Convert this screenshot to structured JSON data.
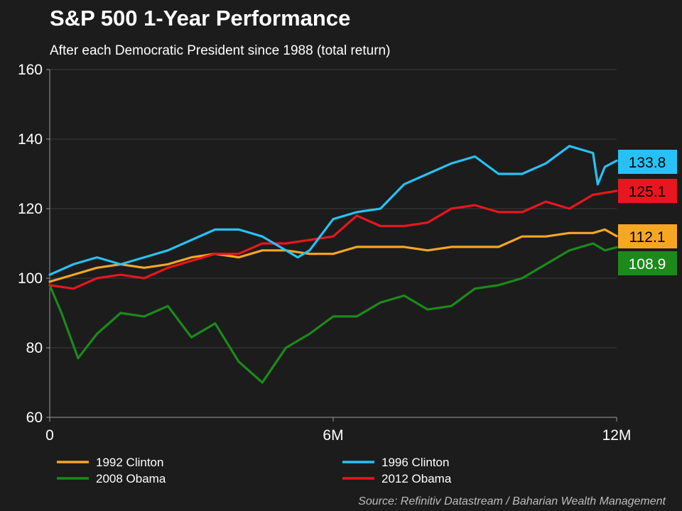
{
  "chart_data": {
    "type": "line",
    "title": "S&P 500 1-Year Performance",
    "subtitle": "After each Democratic President since 1988 (total return)",
    "source": "Source: Refinitiv Datastream / Baharian Wealth Management",
    "xlabel": "",
    "ylabel": "",
    "ylim": [
      60,
      160
    ],
    "yticks": [
      60,
      80,
      100,
      120,
      140,
      160
    ],
    "xlim": [
      0,
      12
    ],
    "xticks": [
      {
        "value": 0,
        "label": "0"
      },
      {
        "value": 6,
        "label": "6M"
      },
      {
        "value": 12,
        "label": "12M"
      }
    ],
    "grid": "horizontal",
    "legend_position": "bottom",
    "series": [
      {
        "name": "1992 Clinton",
        "color": "#f5a623",
        "end_label": "112.1",
        "x": [
          0,
          0.5,
          1,
          1.5,
          2,
          2.5,
          3,
          3.5,
          4,
          4.5,
          5,
          5.5,
          6,
          6.5,
          7,
          7.5,
          8,
          8.5,
          9,
          9.5,
          10,
          10.5,
          11,
          11.5,
          11.75,
          12
        ],
        "values": [
          99,
          101,
          103,
          104,
          103,
          104,
          106,
          107,
          106,
          108,
          108,
          107,
          107,
          109,
          109,
          109,
          108,
          109,
          109,
          109,
          112,
          112,
          113,
          113,
          114,
          112.1
        ]
      },
      {
        "name": "1996 Clinton",
        "color": "#27c2f5",
        "end_label": "133.8",
        "x": [
          0,
          0.5,
          1,
          1.5,
          2,
          2.5,
          3,
          3.5,
          4,
          4.5,
          5,
          5.25,
          5.5,
          6,
          6.5,
          7,
          7.5,
          8,
          8.5,
          9,
          9.5,
          10,
          10.5,
          11,
          11.5,
          11.6,
          11.75,
          12
        ],
        "values": [
          101,
          104,
          106,
          104,
          106,
          108,
          111,
          114,
          114,
          112,
          108,
          106,
          108,
          117,
          119,
          120,
          127,
          130,
          133,
          135,
          130,
          130,
          133,
          138,
          136,
          127,
          132,
          133.8
        ]
      },
      {
        "name": "2008 Obama",
        "color": "#1b8a1b",
        "end_label": "108.9",
        "x": [
          0,
          0.25,
          0.6,
          1,
          1.5,
          2,
          2.5,
          3,
          3.5,
          4,
          4.5,
          5,
          5.5,
          6,
          6.5,
          7,
          7.5,
          8,
          8.5,
          9,
          9.5,
          10,
          10.5,
          11,
          11.5,
          11.75,
          12
        ],
        "values": [
          98,
          90,
          77,
          84,
          90,
          89,
          92,
          83,
          87,
          76,
          70,
          80,
          84,
          89,
          89,
          93,
          95,
          91,
          92,
          97,
          98,
          100,
          104,
          108,
          110,
          108,
          108.9
        ]
      },
      {
        "name": "2012 Obama",
        "color": "#e8161e",
        "end_label": "125.1",
        "x": [
          0,
          0.5,
          1,
          1.5,
          2,
          2.5,
          3,
          3.5,
          4,
          4.5,
          5,
          5.5,
          6,
          6.5,
          7,
          7.5,
          8,
          8.5,
          9,
          9.5,
          10,
          10.5,
          11,
          11.5,
          12
        ],
        "values": [
          98,
          97,
          100,
          101,
          100,
          103,
          105,
          107,
          107,
          110,
          110,
          111,
          112,
          118,
          115,
          115,
          116,
          120,
          121,
          119,
          119,
          122,
          120,
          124,
          125.1
        ]
      }
    ]
  }
}
